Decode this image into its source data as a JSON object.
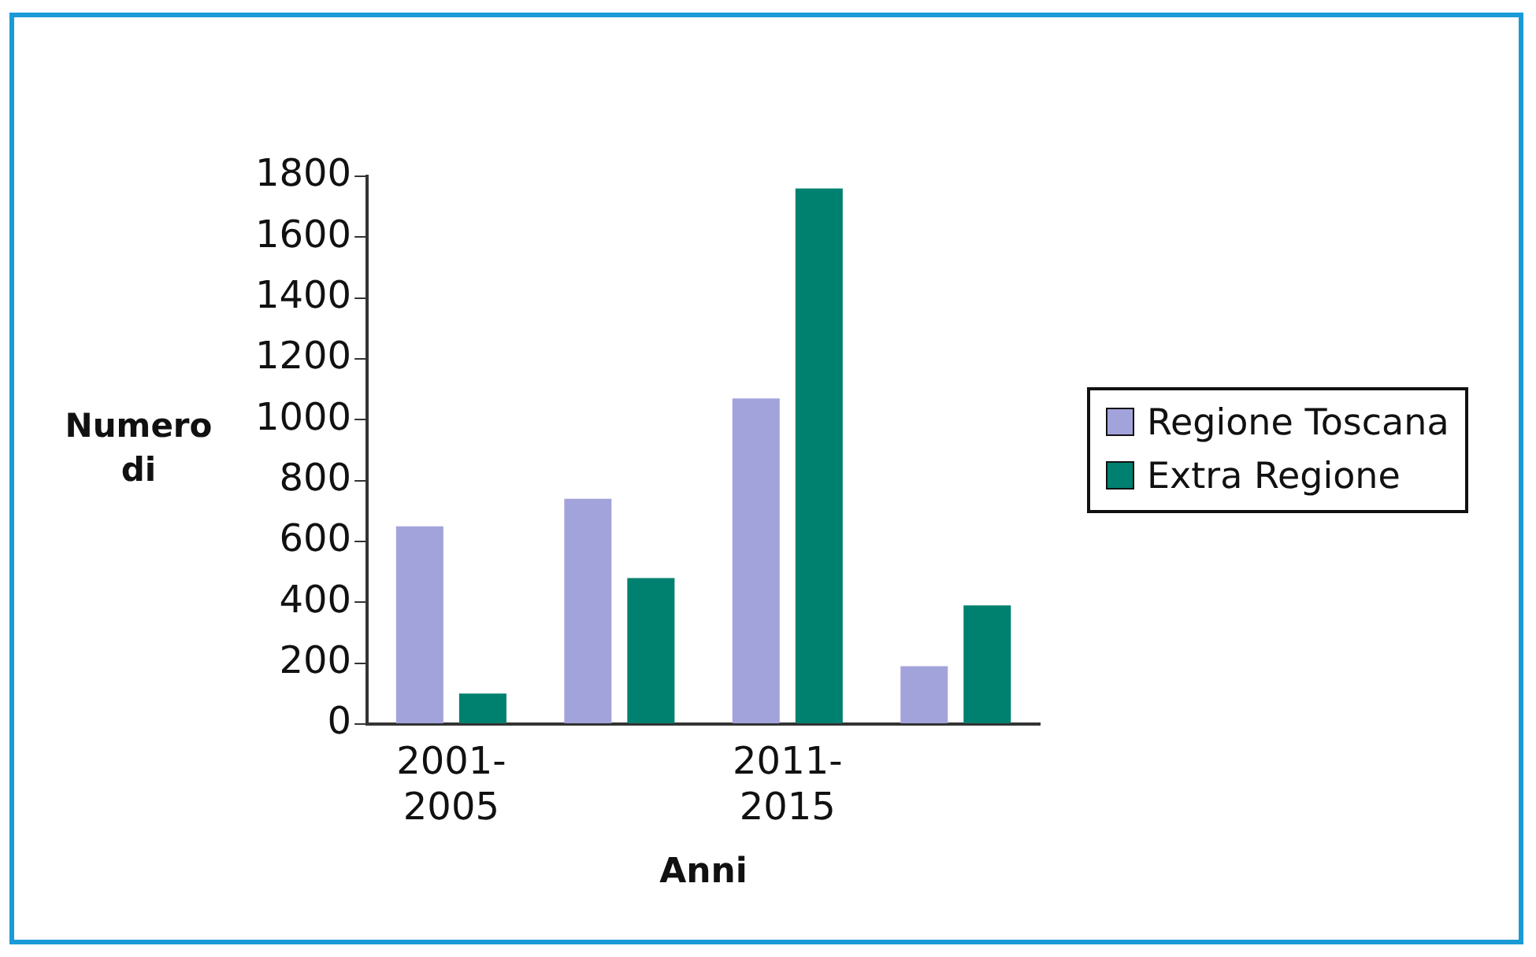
{
  "chart_data": {
    "type": "bar",
    "xlabel": "Anni",
    "ylabel": "Numero di",
    "categories": [
      "2001-2005",
      null,
      "2011-2015",
      null
    ],
    "series": [
      {
        "name": "Regione Toscana",
        "color": "#a3a3dc",
        "values": [
          650,
          740,
          1070,
          190
        ]
      },
      {
        "name": "Extra Regione",
        "color": "#00806e",
        "values": [
          100,
          480,
          1760,
          390
        ]
      }
    ],
    "ylim": [
      0,
      1800
    ],
    "yticks": [
      0,
      200,
      400,
      600,
      800,
      1000,
      1200,
      1400,
      1600,
      1800
    ],
    "grid": false,
    "legend": "right"
  }
}
